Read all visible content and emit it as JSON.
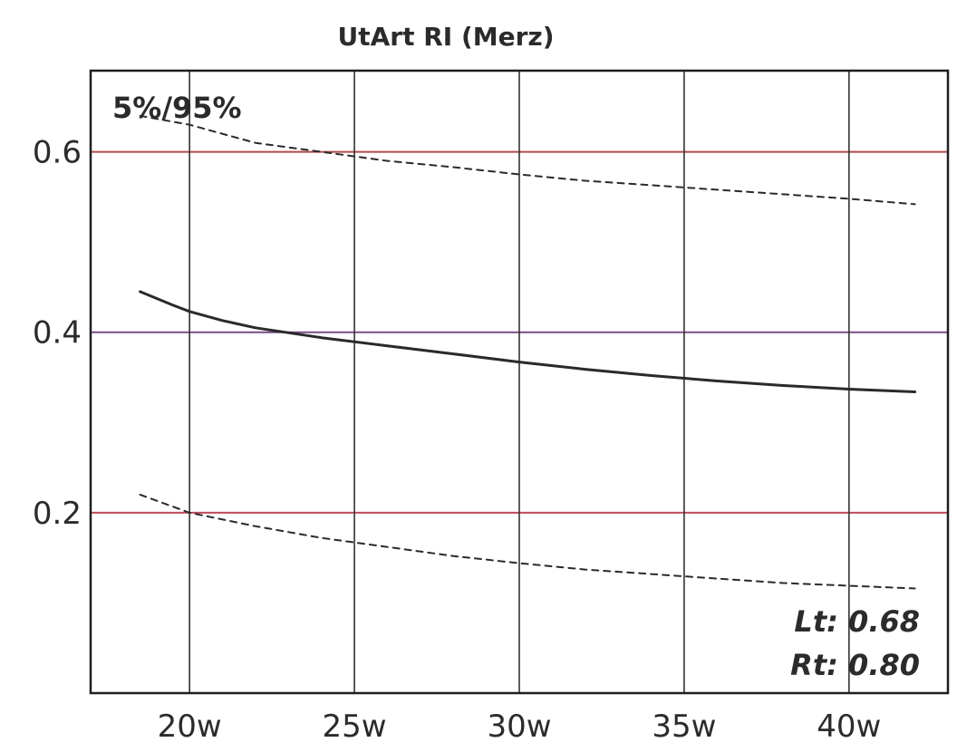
{
  "chart_data": {
    "type": "line",
    "title": "UtArt RI (Merz)",
    "xlabel": "",
    "ylabel": "",
    "x_ticks": [
      {
        "value": 20,
        "label": "20w"
      },
      {
        "value": 25,
        "label": "25w"
      },
      {
        "value": 30,
        "label": "30w"
      },
      {
        "value": 35,
        "label": "35w"
      },
      {
        "value": 40,
        "label": "40w"
      }
    ],
    "y_ticks": [
      {
        "value": 0.2,
        "label": "0.2"
      },
      {
        "value": 0.4,
        "label": "0.4"
      },
      {
        "value": 0.6,
        "label": "0.6"
      }
    ],
    "xlim": [
      17,
      43
    ],
    "ylim": [
      0,
      0.69
    ],
    "grid": true,
    "series": [
      {
        "style": "dashed",
        "x": [
          18.5,
          20,
          22,
          24,
          26,
          28,
          30,
          32,
          34,
          36,
          38,
          40,
          42
        ],
        "values": [
          0.64,
          0.63,
          0.61,
          0.6,
          0.59,
          0.583,
          0.575,
          0.568,
          0.563,
          0.558,
          0.553,
          0.548,
          0.542
        ]
      },
      {
        "style": "solid",
        "x": [
          18.5,
          19.5,
          20,
          21,
          22,
          24,
          26,
          28,
          30,
          32,
          34,
          36,
          38,
          40,
          42
        ],
        "values": [
          0.445,
          0.43,
          0.423,
          0.413,
          0.405,
          0.394,
          0.385,
          0.376,
          0.367,
          0.359,
          0.352,
          0.346,
          0.341,
          0.337,
          0.334
        ]
      },
      {
        "style": "dashed",
        "x": [
          18.5,
          20,
          22,
          24,
          26,
          28,
          30,
          32,
          34,
          36,
          38,
          40,
          42
        ],
        "values": [
          0.22,
          0.2,
          0.185,
          0.172,
          0.162,
          0.152,
          0.144,
          0.137,
          0.132,
          0.127,
          0.122,
          0.119,
          0.116
        ]
      }
    ],
    "annotations": {
      "percentiles": "5%/95%",
      "left": "Lt: 0.68",
      "right": "Rt: 0.80"
    }
  }
}
